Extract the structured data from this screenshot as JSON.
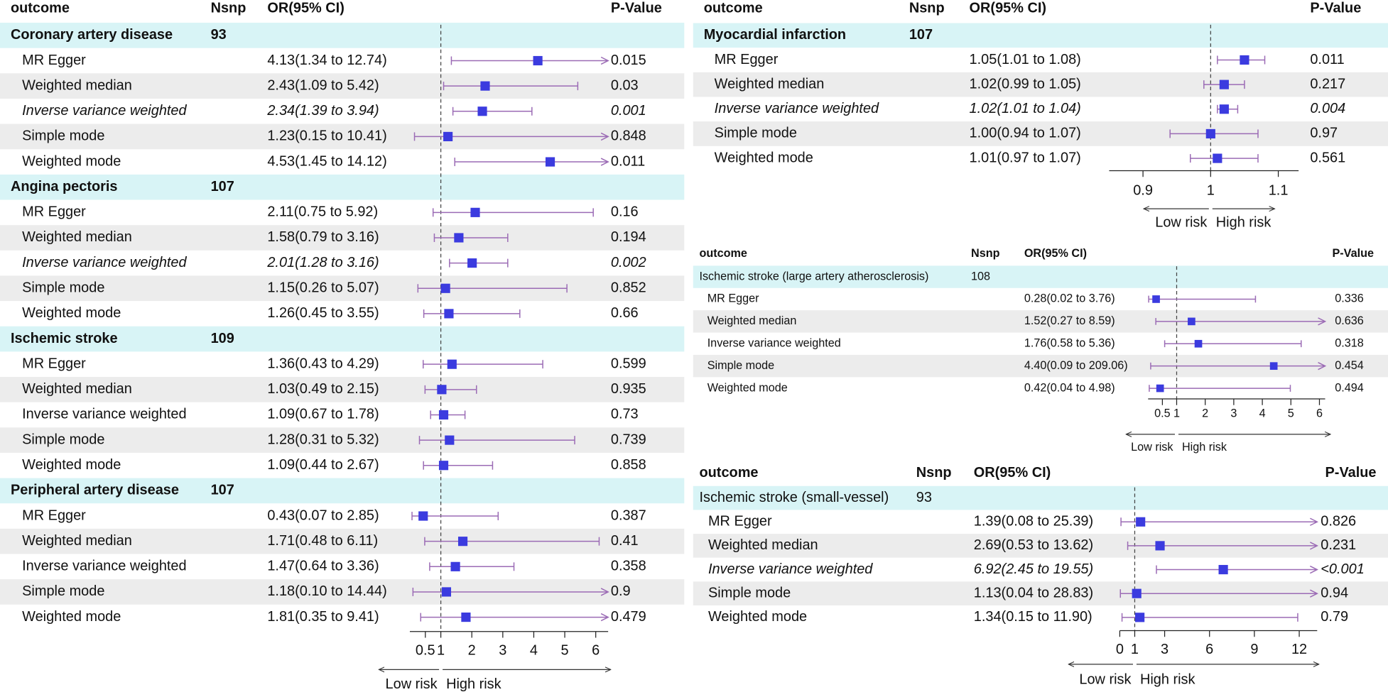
{
  "chart_data": [
    {
      "type": "forest",
      "columns": [
        "outcome",
        "Nsnp",
        "OR(95% CI)",
        "P-Value"
      ],
      "groups": [
        {
          "name": "Coronary artery disease",
          "nsnp": 93,
          "rows": [
            {
              "method": "MR Egger",
              "estimate": 4.13,
              "lower": 1.34,
              "upper": 12.74,
              "ci_label": "4.13(1.34 to 12.74)",
              "p": 0.015,
              "highlight": false
            },
            {
              "method": "Weighted median",
              "estimate": 2.43,
              "lower": 1.09,
              "upper": 5.42,
              "ci_label": "2.43(1.09 to 5.42)",
              "p": 0.03,
              "highlight": false
            },
            {
              "method": "Inverse variance weighted",
              "estimate": 2.34,
              "lower": 1.39,
              "upper": 3.94,
              "ci_label": "2.34(1.39 to 3.94)",
              "p": 0.001,
              "highlight": true
            },
            {
              "method": "Simple mode",
              "estimate": 1.23,
              "lower": 0.15,
              "upper": 10.41,
              "ci_label": "1.23(0.15 to 10.41)",
              "p": 0.848,
              "highlight": false
            },
            {
              "method": "Weighted mode",
              "estimate": 4.53,
              "lower": 1.45,
              "upper": 14.12,
              "ci_label": "4.53(1.45 to 14.12)",
              "p": 0.011,
              "highlight": false
            }
          ]
        },
        {
          "name": "Angina pectoris",
          "nsnp": 107,
          "rows": [
            {
              "method": "MR Egger",
              "estimate": 2.11,
              "lower": 0.75,
              "upper": 5.92,
              "ci_label": "2.11(0.75 to 5.92)",
              "p": 0.16,
              "highlight": false
            },
            {
              "method": "Weighted median",
              "estimate": 1.58,
              "lower": 0.79,
              "upper": 3.16,
              "ci_label": "1.58(0.79 to 3.16)",
              "p": 0.194,
              "highlight": false
            },
            {
              "method": "Inverse variance weighted",
              "estimate": 2.01,
              "lower": 1.28,
              "upper": 3.16,
              "ci_label": "2.01(1.28 to 3.16)",
              "p": 0.002,
              "highlight": true
            },
            {
              "method": "Simple mode",
              "estimate": 1.15,
              "lower": 0.26,
              "upper": 5.07,
              "ci_label": "1.15(0.26 to 5.07)",
              "p": 0.852,
              "highlight": false
            },
            {
              "method": "Weighted mode",
              "estimate": 1.26,
              "lower": 0.45,
              "upper": 3.55,
              "ci_label": "1.26(0.45 to 3.55)",
              "p": 0.66,
              "highlight": false
            }
          ]
        },
        {
          "name": "Ischemic stroke",
          "nsnp": 109,
          "rows": [
            {
              "method": "MR Egger",
              "estimate": 1.36,
              "lower": 0.43,
              "upper": 4.29,
              "ci_label": "1.36(0.43 to 4.29)",
              "p": 0.599,
              "highlight": false
            },
            {
              "method": "Weighted median",
              "estimate": 1.03,
              "lower": 0.49,
              "upper": 2.15,
              "ci_label": "1.03(0.49 to 2.15)",
              "p": 0.935,
              "highlight": false
            },
            {
              "method": "Inverse variance weighted",
              "estimate": 1.09,
              "lower": 0.67,
              "upper": 1.78,
              "ci_label": "1.09(0.67 to 1.78)",
              "p": 0.73,
              "highlight": false
            },
            {
              "method": "Simple mode",
              "estimate": 1.28,
              "lower": 0.31,
              "upper": 5.32,
              "ci_label": "1.28(0.31 to 5.32)",
              "p": 0.739,
              "highlight": false
            },
            {
              "method": "Weighted mode",
              "estimate": 1.09,
              "lower": 0.44,
              "upper": 2.67,
              "ci_label": "1.09(0.44 to 2.67)",
              "p": 0.858,
              "highlight": false
            }
          ]
        },
        {
          "name": "Peripheral artery disease",
          "nsnp": 107,
          "rows": [
            {
              "method": "MR Egger",
              "estimate": 0.43,
              "lower": 0.07,
              "upper": 2.85,
              "ci_label": "0.43(0.07 to 2.85)",
              "p": 0.387,
              "highlight": false
            },
            {
              "method": "Weighted median",
              "estimate": 1.71,
              "lower": 0.48,
              "upper": 6.11,
              "ci_label": "1.71(0.48 to 6.11)",
              "p": 0.41,
              "highlight": false
            },
            {
              "method": "Inverse variance weighted",
              "estimate": 1.47,
              "lower": 0.64,
              "upper": 3.36,
              "ci_label": "1.47(0.64 to 3.36)",
              "p": 0.358,
              "highlight": false
            },
            {
              "method": "Simple mode",
              "estimate": 1.18,
              "lower": 0.1,
              "upper": 14.44,
              "ci_label": "1.18(0.10 to 14.44)",
              "p": 0.9,
              "highlight": false
            },
            {
              "method": "Weighted mode",
              "estimate": 1.81,
              "lower": 0.35,
              "upper": 9.41,
              "ci_label": "1.81(0.35 to 9.41)",
              "p": 0.479,
              "highlight": false
            }
          ]
        }
      ],
      "xlim": [
        0,
        6.4
      ],
      "xticks": [
        0.5,
        1,
        2,
        3,
        4,
        5,
        6
      ],
      "reference": 1,
      "arrow_labels": [
        "Low risk",
        "High risk"
      ]
    },
    {
      "type": "forest",
      "columns": [
        "outcome",
        "Nsnp",
        "OR(95% CI)",
        "P-Value"
      ],
      "groups": [
        {
          "name": "Myocardial infarction",
          "nsnp": 107,
          "rows": [
            {
              "method": "MR Egger",
              "estimate": 1.05,
              "lower": 1.01,
              "upper": 1.08,
              "ci_label": "1.05(1.01 to 1.08)",
              "p": 0.011,
              "highlight": false
            },
            {
              "method": "Weighted median",
              "estimate": 1.02,
              "lower": 0.99,
              "upper": 1.05,
              "ci_label": "1.02(0.99 to 1.05)",
              "p": 0.217,
              "highlight": false
            },
            {
              "method": "Inverse variance weighted",
              "estimate": 1.02,
              "lower": 1.01,
              "upper": 1.04,
              "ci_label": "1.02(1.01 to 1.04)",
              "p": 0.004,
              "highlight": true
            },
            {
              "method": "Simple mode",
              "estimate": 1.0,
              "lower": 0.94,
              "upper": 1.07,
              "ci_label": "1.00(0.94 to 1.07)",
              "p": 0.97,
              "highlight": false
            },
            {
              "method": "Weighted mode",
              "estimate": 1.01,
              "lower": 0.97,
              "upper": 1.07,
              "ci_label": "1.01(0.97 to 1.07)",
              "p": 0.561,
              "highlight": false
            }
          ]
        }
      ],
      "xlim": [
        0.85,
        1.13
      ],
      "xticks": [
        0.9,
        1,
        1.1
      ],
      "reference": 1,
      "arrow_labels": [
        "Low risk",
        "High risk"
      ]
    },
    {
      "type": "forest",
      "columns": [
        "outcome",
        "Nsnp",
        "OR(95% CI)",
        "P-Value"
      ],
      "groups": [
        {
          "name": "Ischemic stroke (large artery atherosclerosis)",
          "nsnp": 108,
          "rows": [
            {
              "method": "MR Egger",
              "estimate": 0.28,
              "lower": 0.02,
              "upper": 3.76,
              "ci_label": "0.28(0.02 to 3.76)",
              "p": 0.336,
              "highlight": false
            },
            {
              "method": "Weighted median",
              "estimate": 1.52,
              "lower": 0.27,
              "upper": 8.59,
              "ci_label": "1.52(0.27 to 8.59)",
              "p": 0.636,
              "highlight": false
            },
            {
              "method": "Inverse variance weighted",
              "estimate": 1.76,
              "lower": 0.58,
              "upper": 5.36,
              "ci_label": "1.76(0.58 to 5.36)",
              "p": 0.318,
              "highlight": false
            },
            {
              "method": "Simple mode",
              "estimate": 4.4,
              "lower": 0.09,
              "upper": 209.06,
              "ci_label": "4.40(0.09 to 209.06)",
              "p": 0.454,
              "highlight": false
            },
            {
              "method": "Weighted mode",
              "estimate": 0.42,
              "lower": 0.04,
              "upper": 4.98,
              "ci_label": "0.42(0.04 to 4.98)",
              "p": 0.494,
              "highlight": false
            }
          ]
        }
      ],
      "xlim": [
        0,
        6.2
      ],
      "xticks": [
        0.5,
        1,
        2,
        3,
        4,
        5,
        6
      ],
      "reference": 1,
      "arrow_labels": [
        "Low risk",
        "High risk"
      ]
    },
    {
      "type": "forest",
      "columns": [
        "outcome",
        "Nsnp",
        "OR(95% CI)",
        "P-Value"
      ],
      "groups": [
        {
          "name": "Ischemic stroke (small-vessel)",
          "nsnp": 93,
          "rows": [
            {
              "method": "MR Egger",
              "estimate": 1.39,
              "lower": 0.08,
              "upper": 25.39,
              "ci_label": "1.39(0.08 to 25.39)",
              "p": 0.826,
              "highlight": false
            },
            {
              "method": "Weighted median",
              "estimate": 2.69,
              "lower": 0.53,
              "upper": 13.62,
              "ci_label": "2.69(0.53 to 13.62)",
              "p": 0.231,
              "highlight": false
            },
            {
              "method": "Inverse variance weighted",
              "estimate": 6.92,
              "lower": 2.45,
              "upper": 19.55,
              "ci_label": "6.92(2.45 to 19.55)",
              "p": "<0.001",
              "highlight": true
            },
            {
              "method": "Simple mode",
              "estimate": 1.13,
              "lower": 0.04,
              "upper": 28.83,
              "ci_label": "1.13(0.04 to 28.83)",
              "p": 0.94,
              "highlight": false
            },
            {
              "method": "Weighted mode",
              "estimate": 1.34,
              "lower": 0.15,
              "upper": 11.9,
              "ci_label": "1.34(0.15 to 11.90)",
              "p": 0.79,
              "highlight": false
            }
          ]
        }
      ],
      "xlim": [
        0,
        13.2
      ],
      "xticks": [
        0,
        1,
        3,
        6,
        9,
        12
      ],
      "reference": 1,
      "arrow_labels": [
        "Low risk",
        "High risk"
      ]
    }
  ]
}
